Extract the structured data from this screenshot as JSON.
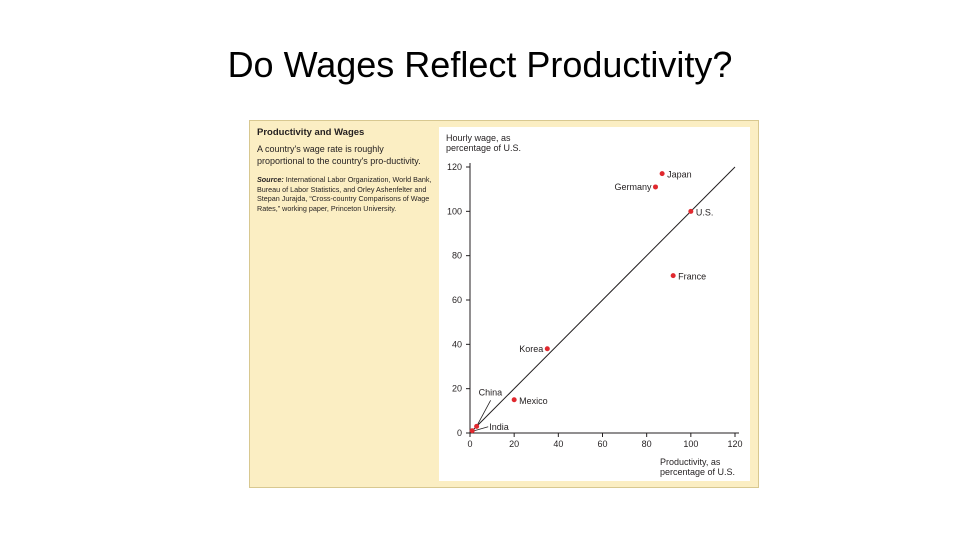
{
  "slide": {
    "title": "Do Wages Reflect Productivity?"
  },
  "caption": {
    "title": "Productivity and Wages",
    "text": "A country's wage rate is roughly proportional to the country's pro-ductivity.",
    "source_label": "Source:",
    "source_text": "International Labor Organization, World Bank, Bureau of Labor Statistics, and Orley Ashenfelter and Stepan Jurajda, “Cross-country Comparisons of Wage Rates,” working paper, Princeton University."
  },
  "chart_data": {
    "type": "scatter",
    "ylabel": "Hourly wage, as\npercentage of U.S.",
    "xlabel": "Productivity, as\npercentage of U.S.",
    "xlim": [
      0,
      120
    ],
    "ylim": [
      0,
      120
    ],
    "xticks": [
      0,
      20,
      40,
      60,
      80,
      100,
      120
    ],
    "yticks": [
      0,
      20,
      40,
      60,
      80,
      100,
      120
    ],
    "reference_line": {
      "from": [
        0,
        0
      ],
      "to": [
        120,
        120
      ]
    },
    "point_color": "#e0282e",
    "points": [
      {
        "label": "Japan",
        "x": 87,
        "y": 117
      },
      {
        "label": "Germany",
        "x": 84,
        "y": 111
      },
      {
        "label": "U.S.",
        "x": 100,
        "y": 100
      },
      {
        "label": "France",
        "x": 92,
        "y": 71
      },
      {
        "label": "Korea",
        "x": 35,
        "y": 38
      },
      {
        "label": "Mexico",
        "x": 20,
        "y": 15
      },
      {
        "label": "China",
        "x": 3,
        "y": 3
      },
      {
        "label": "India",
        "x": 1,
        "y": 1
      }
    ]
  }
}
